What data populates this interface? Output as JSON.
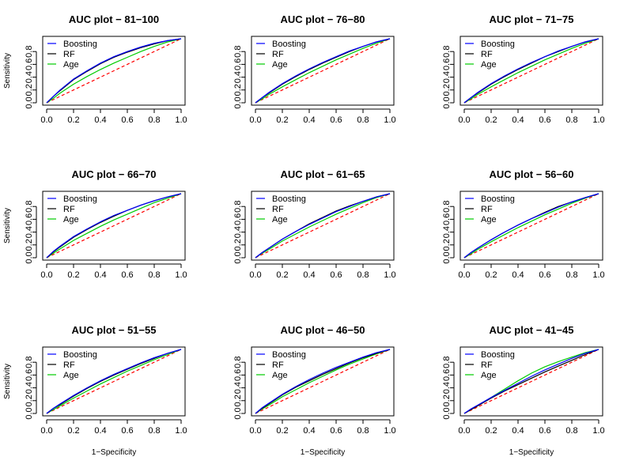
{
  "figure": {
    "xlabel": "1−Specificity",
    "ylabel": "Sensitivity"
  },
  "colors": {
    "Boosting": "#0000ff",
    "RF": "#000000",
    "Age": "#00cc00",
    "reference": "#ff0000"
  },
  "chart_data": [
    {
      "type": "line",
      "title": "AUC plot − 81−100",
      "xlim": [
        0,
        1
      ],
      "ylim": [
        0,
        1
      ],
      "x_ticks": [
        "0.0",
        "0.2",
        "0.4",
        "0.6",
        "0.8",
        "1.0"
      ],
      "y_ticks": [
        "0.0",
        "0.2",
        "0.4",
        "0.6",
        "0.8"
      ],
      "legend": [
        "Boosting",
        "RF",
        "Age"
      ],
      "legend_position": "top-left",
      "x": [
        0,
        0.05,
        0.1,
        0.2,
        0.3,
        0.4,
        0.5,
        0.6,
        0.7,
        0.8,
        0.9,
        1
      ],
      "series": [
        {
          "name": "Boosting",
          "values": [
            0,
            0.1,
            0.2,
            0.37,
            0.5,
            0.62,
            0.72,
            0.8,
            0.87,
            0.93,
            0.97,
            1
          ]
        },
        {
          "name": "RF",
          "values": [
            0,
            0.1,
            0.19,
            0.36,
            0.49,
            0.61,
            0.71,
            0.79,
            0.86,
            0.92,
            0.97,
            1
          ]
        },
        {
          "name": "Age",
          "values": [
            0,
            0.07,
            0.15,
            0.29,
            0.41,
            0.52,
            0.62,
            0.71,
            0.8,
            0.88,
            0.95,
            1
          ]
        },
        {
          "name": "",
          "values": [
            0,
            0.05,
            0.1,
            0.2,
            0.3,
            0.4,
            0.5,
            0.6,
            0.7,
            0.8,
            0.9,
            1
          ]
        }
      ]
    },
    {
      "type": "line",
      "title": "AUC plot − 76−80",
      "xlim": [
        0,
        1
      ],
      "ylim": [
        0,
        1
      ],
      "x_ticks": [
        "0.0",
        "0.2",
        "0.4",
        "0.6",
        "0.8",
        "1.0"
      ],
      "y_ticks": [
        "0.0",
        "0.2",
        "0.4",
        "0.6",
        "0.8"
      ],
      "legend": [
        "Boosting",
        "RF",
        "Age"
      ],
      "legend_position": "top-left",
      "x": [
        0,
        0.05,
        0.1,
        0.2,
        0.3,
        0.4,
        0.5,
        0.6,
        0.7,
        0.8,
        0.9,
        1
      ],
      "series": [
        {
          "name": "Boosting",
          "values": [
            0,
            0.08,
            0.16,
            0.3,
            0.42,
            0.53,
            0.63,
            0.72,
            0.81,
            0.88,
            0.95,
            1
          ]
        },
        {
          "name": "RF",
          "values": [
            0,
            0.08,
            0.15,
            0.29,
            0.41,
            0.52,
            0.62,
            0.71,
            0.8,
            0.88,
            0.95,
            1
          ]
        },
        {
          "name": "Age",
          "values": [
            0,
            0.06,
            0.13,
            0.25,
            0.36,
            0.47,
            0.57,
            0.67,
            0.76,
            0.85,
            0.93,
            1
          ]
        },
        {
          "name": "",
          "values": [
            0,
            0.05,
            0.1,
            0.2,
            0.3,
            0.4,
            0.5,
            0.6,
            0.7,
            0.8,
            0.9,
            1
          ]
        }
      ]
    },
    {
      "type": "line",
      "title": "AUC plot − 71−75",
      "xlim": [
        0,
        1
      ],
      "ylim": [
        0,
        1
      ],
      "x_ticks": [
        "0.0",
        "0.2",
        "0.4",
        "0.6",
        "0.8",
        "1.0"
      ],
      "y_ticks": [
        "0.0",
        "0.2",
        "0.4",
        "0.6",
        "0.8"
      ],
      "legend": [
        "Boosting",
        "RF",
        "Age"
      ],
      "legend_position": "top-left",
      "x": [
        0,
        0.05,
        0.1,
        0.2,
        0.3,
        0.4,
        0.5,
        0.6,
        0.7,
        0.8,
        0.9,
        1
      ],
      "series": [
        {
          "name": "Boosting",
          "values": [
            0,
            0.08,
            0.16,
            0.3,
            0.42,
            0.53,
            0.63,
            0.72,
            0.81,
            0.88,
            0.95,
            1
          ]
        },
        {
          "name": "RF",
          "values": [
            0,
            0.08,
            0.15,
            0.29,
            0.41,
            0.52,
            0.62,
            0.72,
            0.8,
            0.88,
            0.95,
            1
          ]
        },
        {
          "name": "Age",
          "values": [
            0,
            0.06,
            0.13,
            0.25,
            0.36,
            0.47,
            0.57,
            0.67,
            0.76,
            0.85,
            0.93,
            1
          ]
        },
        {
          "name": "",
          "values": [
            0,
            0.05,
            0.1,
            0.2,
            0.3,
            0.4,
            0.5,
            0.6,
            0.7,
            0.8,
            0.9,
            1
          ]
        }
      ]
    },
    {
      "type": "line",
      "title": "AUC plot − 66−70",
      "xlim": [
        0,
        1
      ],
      "ylim": [
        0,
        1
      ],
      "x_ticks": [
        "0.0",
        "0.2",
        "0.4",
        "0.6",
        "0.8",
        "1.0"
      ],
      "y_ticks": [
        "0.0",
        "0.2",
        "0.4",
        "0.6",
        "0.8"
      ],
      "legend": [
        "Boosting",
        "RF",
        "Age"
      ],
      "legend_position": "top-left",
      "x": [
        0,
        0.05,
        0.1,
        0.2,
        0.3,
        0.4,
        0.5,
        0.6,
        0.7,
        0.8,
        0.9,
        1
      ],
      "series": [
        {
          "name": "Boosting",
          "values": [
            0,
            0.1,
            0.18,
            0.33,
            0.45,
            0.56,
            0.66,
            0.74,
            0.82,
            0.89,
            0.95,
            1
          ]
        },
        {
          "name": "RF",
          "values": [
            0,
            0.09,
            0.17,
            0.32,
            0.44,
            0.55,
            0.65,
            0.74,
            0.82,
            0.89,
            0.95,
            1
          ]
        },
        {
          "name": "Age",
          "values": [
            0,
            0.07,
            0.14,
            0.27,
            0.38,
            0.49,
            0.59,
            0.68,
            0.77,
            0.86,
            0.93,
            1
          ]
        },
        {
          "name": "",
          "values": [
            0,
            0.05,
            0.1,
            0.2,
            0.3,
            0.4,
            0.5,
            0.6,
            0.7,
            0.8,
            0.9,
            1
          ]
        }
      ]
    },
    {
      "type": "line",
      "title": "AUC plot − 61−65",
      "xlim": [
        0,
        1
      ],
      "ylim": [
        0,
        1
      ],
      "x_ticks": [
        "0.0",
        "0.2",
        "0.4",
        "0.6",
        "0.8",
        "1.0"
      ],
      "y_ticks": [
        "0.0",
        "0.2",
        "0.4",
        "0.6",
        "0.8"
      ],
      "legend": [
        "Boosting",
        "RF",
        "Age"
      ],
      "legend_position": "top-left",
      "x": [
        0,
        0.05,
        0.1,
        0.2,
        0.3,
        0.4,
        0.5,
        0.6,
        0.7,
        0.8,
        0.9,
        1
      ],
      "series": [
        {
          "name": "Boosting",
          "values": [
            0,
            0.08,
            0.15,
            0.29,
            0.41,
            0.52,
            0.62,
            0.72,
            0.8,
            0.88,
            0.95,
            1
          ]
        },
        {
          "name": "RF",
          "values": [
            0,
            0.08,
            0.15,
            0.29,
            0.41,
            0.53,
            0.63,
            0.73,
            0.81,
            0.88,
            0.95,
            1
          ]
        },
        {
          "name": "Age",
          "values": [
            0,
            0.07,
            0.13,
            0.26,
            0.37,
            0.48,
            0.58,
            0.68,
            0.77,
            0.86,
            0.94,
            1
          ]
        },
        {
          "name": "",
          "values": [
            0,
            0.05,
            0.1,
            0.2,
            0.3,
            0.4,
            0.5,
            0.6,
            0.7,
            0.8,
            0.9,
            1
          ]
        }
      ]
    },
    {
      "type": "line",
      "title": "AUC plot − 56−60",
      "xlim": [
        0,
        1
      ],
      "ylim": [
        0,
        1
      ],
      "x_ticks": [
        "0.0",
        "0.2",
        "0.4",
        "0.6",
        "0.8",
        "1.0"
      ],
      "y_ticks": [
        "0.0",
        "0.2",
        "0.4",
        "0.6",
        "0.8"
      ],
      "legend": [
        "Boosting",
        "RF",
        "Age"
      ],
      "legend_position": "top-left",
      "x": [
        0,
        0.05,
        0.1,
        0.2,
        0.3,
        0.4,
        0.5,
        0.6,
        0.7,
        0.8,
        0.9,
        1
      ],
      "series": [
        {
          "name": "Boosting",
          "values": [
            0,
            0.08,
            0.15,
            0.28,
            0.4,
            0.51,
            0.61,
            0.7,
            0.79,
            0.87,
            0.94,
            1
          ]
        },
        {
          "name": "RF",
          "values": [
            0,
            0.08,
            0.15,
            0.28,
            0.4,
            0.51,
            0.61,
            0.71,
            0.8,
            0.87,
            0.94,
            1
          ]
        },
        {
          "name": "Age",
          "values": [
            0,
            0.06,
            0.13,
            0.25,
            0.36,
            0.47,
            0.57,
            0.67,
            0.76,
            0.85,
            0.93,
            1
          ]
        },
        {
          "name": "",
          "values": [
            0,
            0.05,
            0.1,
            0.2,
            0.3,
            0.4,
            0.5,
            0.6,
            0.7,
            0.8,
            0.9,
            1
          ]
        }
      ]
    },
    {
      "type": "line",
      "title": "AUC plot − 51−55",
      "xlim": [
        0,
        1
      ],
      "ylim": [
        0,
        1
      ],
      "x_ticks": [
        "0.0",
        "0.2",
        "0.4",
        "0.6",
        "0.8",
        "1.0"
      ],
      "y_ticks": [
        "0.0",
        "0.2",
        "0.4",
        "0.6",
        "0.8"
      ],
      "legend": [
        "Boosting",
        "RF",
        "Age"
      ],
      "legend_position": "top-left",
      "x": [
        0,
        0.05,
        0.1,
        0.2,
        0.3,
        0.4,
        0.5,
        0.6,
        0.7,
        0.8,
        0.9,
        1
      ],
      "series": [
        {
          "name": "Boosting",
          "values": [
            0,
            0.08,
            0.15,
            0.28,
            0.4,
            0.51,
            0.61,
            0.7,
            0.79,
            0.87,
            0.94,
            1
          ]
        },
        {
          "name": "RF",
          "values": [
            0,
            0.08,
            0.14,
            0.27,
            0.39,
            0.5,
            0.6,
            0.69,
            0.78,
            0.86,
            0.94,
            1
          ]
        },
        {
          "name": "Age",
          "values": [
            0,
            0.06,
            0.12,
            0.24,
            0.35,
            0.46,
            0.56,
            0.66,
            0.75,
            0.84,
            0.92,
            1
          ]
        },
        {
          "name": "",
          "values": [
            0,
            0.05,
            0.1,
            0.2,
            0.3,
            0.4,
            0.5,
            0.6,
            0.7,
            0.8,
            0.9,
            1
          ]
        }
      ]
    },
    {
      "type": "line",
      "title": "AUC plot − 46−50",
      "xlim": [
        0,
        1
      ],
      "ylim": [
        0,
        1
      ],
      "x_ticks": [
        "0.0",
        "0.2",
        "0.4",
        "0.6",
        "0.8",
        "1.0"
      ],
      "y_ticks": [
        "0.0",
        "0.2",
        "0.4",
        "0.6",
        "0.8"
      ],
      "legend": [
        "Boosting",
        "RF",
        "Age"
      ],
      "legend_position": "top-left",
      "x": [
        0,
        0.05,
        0.1,
        0.2,
        0.3,
        0.4,
        0.5,
        0.6,
        0.7,
        0.8,
        0.9,
        1
      ],
      "series": [
        {
          "name": "Boosting",
          "values": [
            0,
            0.09,
            0.16,
            0.3,
            0.42,
            0.53,
            0.63,
            0.72,
            0.8,
            0.88,
            0.95,
            1
          ]
        },
        {
          "name": "RF",
          "values": [
            0,
            0.08,
            0.15,
            0.29,
            0.41,
            0.51,
            0.61,
            0.7,
            0.79,
            0.87,
            0.94,
            1
          ]
        },
        {
          "name": "Age",
          "values": [
            0,
            0.07,
            0.13,
            0.26,
            0.37,
            0.48,
            0.58,
            0.68,
            0.77,
            0.85,
            0.93,
            1
          ]
        },
        {
          "name": "",
          "values": [
            0,
            0.05,
            0.1,
            0.2,
            0.3,
            0.4,
            0.5,
            0.6,
            0.7,
            0.8,
            0.9,
            1
          ]
        }
      ]
    },
    {
      "type": "line",
      "title": "AUC plot − 41−45",
      "xlim": [
        0,
        1
      ],
      "ylim": [
        0,
        1
      ],
      "x_ticks": [
        "0.0",
        "0.2",
        "0.4",
        "0.6",
        "0.8",
        "1.0"
      ],
      "y_ticks": [
        "0.0",
        "0.2",
        "0.4",
        "0.6",
        "0.8"
      ],
      "legend": [
        "Boosting",
        "RF",
        "Age"
      ],
      "legend_position": "top-left",
      "x": [
        0,
        0.05,
        0.1,
        0.2,
        0.3,
        0.4,
        0.5,
        0.6,
        0.7,
        0.8,
        0.9,
        1
      ],
      "series": [
        {
          "name": "Boosting",
          "values": [
            0,
            0.07,
            0.13,
            0.25,
            0.36,
            0.47,
            0.58,
            0.68,
            0.77,
            0.86,
            0.94,
            1
          ]
        },
        {
          "name": "RF",
          "values": [
            0,
            0.06,
            0.12,
            0.24,
            0.35,
            0.45,
            0.55,
            0.65,
            0.74,
            0.83,
            0.92,
            1
          ]
        },
        {
          "name": "Age",
          "values": [
            0,
            0.06,
            0.12,
            0.25,
            0.38,
            0.51,
            0.63,
            0.73,
            0.81,
            0.88,
            0.95,
            1
          ]
        },
        {
          "name": "",
          "values": [
            0,
            0.05,
            0.1,
            0.2,
            0.3,
            0.4,
            0.5,
            0.6,
            0.7,
            0.8,
            0.9,
            1
          ]
        }
      ]
    }
  ]
}
